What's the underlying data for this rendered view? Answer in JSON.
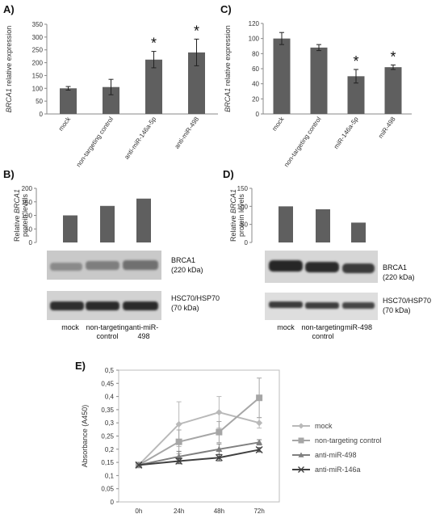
{
  "panels": {
    "A": {
      "letter": "A)"
    },
    "B": {
      "letter": "B)"
    },
    "C": {
      "letter": "C)"
    },
    "D": {
      "letter": "D)"
    },
    "E": {
      "letter": "E)"
    }
  },
  "chart_data": [
    {
      "id": "A",
      "type": "bar",
      "title": "",
      "ylabel": "BRCA1 relative expression",
      "ylabel_italic_part": "BRCA1",
      "categories": [
        "mock",
        "non-targeting control",
        "anti-miR-146a-5p",
        "anti-miR-498"
      ],
      "values": [
        100,
        105,
        212,
        240
      ],
      "errors": [
        7,
        30,
        32,
        52
      ],
      "significant": [
        false,
        false,
        true,
        true
      ],
      "significance_marker": "*",
      "ylim": [
        0,
        350
      ],
      "yticks": [
        0,
        50,
        100,
        150,
        200,
        250,
        300,
        350
      ],
      "bar_color": "#5f5f5f"
    },
    {
      "id": "C",
      "type": "bar",
      "title": "",
      "ylabel": "BRCA1 relative expression",
      "ylabel_italic_part": "BRCA1",
      "categories": [
        "mock",
        "non-targeting control",
        "miR-146a-5p",
        "miR-498"
      ],
      "values": [
        100,
        88,
        50,
        62
      ],
      "errors": [
        8,
        4,
        9,
        3
      ],
      "significant": [
        false,
        false,
        true,
        true
      ],
      "significance_marker": "*",
      "ylim": [
        0,
        120
      ],
      "yticks": [
        0,
        20,
        40,
        60,
        80,
        100,
        120
      ],
      "bar_color": "#5f5f5f"
    },
    {
      "id": "B",
      "type": "bar",
      "ylabel_lines": [
        "Relative BRCA1",
        "protein levels"
      ],
      "categories": [
        "mock",
        "non-targeting control",
        "anti-miR-498"
      ],
      "category_labels": [
        [
          "mock"
        ],
        [
          "non-targeting",
          "control"
        ],
        [
          "anti-miR-",
          "498"
        ]
      ],
      "values": [
        100,
        135,
        162
      ],
      "ylim": [
        0,
        200
      ],
      "yticks": [
        0,
        50,
        100,
        150,
        200
      ],
      "bar_color": "#5f5f5f",
      "blots": [
        {
          "label_lines": [
            "BRCA1",
            "(220 kDa)"
          ]
        },
        {
          "label_lines": [
            "HSC70/HSP70",
            "(70 kDa)"
          ]
        }
      ]
    },
    {
      "id": "D",
      "type": "bar",
      "ylabel_lines": [
        "Relative BRCA1",
        "protein levels"
      ],
      "categories": [
        "mock",
        "non-targeting control",
        "miR-498"
      ],
      "category_labels": [
        [
          "mock"
        ],
        [
          "non-targeting",
          "control"
        ],
        [
          "miR-498"
        ]
      ],
      "values": [
        100,
        92,
        55
      ],
      "ylim": [
        0,
        150
      ],
      "yticks": [
        0,
        50,
        100,
        150
      ],
      "bar_color": "#5f5f5f",
      "blots": [
        {
          "label_lines": [
            "BRCA1",
            "(220 kDa)"
          ]
        },
        {
          "label_lines": [
            "HSC70/HSP70",
            "(70 kDa)"
          ]
        }
      ]
    },
    {
      "id": "E",
      "type": "line",
      "ylabel": "Absorbance (A450)",
      "x": [
        "0h",
        "24h",
        "48h",
        "72h"
      ],
      "ylim": [
        0,
        0.5
      ],
      "yticks": [
        "0",
        "0,05",
        "0,1",
        "0,15",
        "0,2",
        "0,25",
        "0,3",
        "0,35",
        "0,4",
        "0,45",
        "0,5"
      ],
      "series": [
        {
          "name": "mock",
          "values": [
            0.14,
            0.295,
            0.34,
            0.3
          ],
          "errors": [
            0,
            0.085,
            0.06,
            0.02
          ],
          "color": "#b9b9b9",
          "marker": "diamond"
        },
        {
          "name": "non-targeting control",
          "values": [
            0.14,
            0.228,
            0.265,
            0.395
          ],
          "errors": [
            0,
            0.045,
            0.04,
            0.075
          ],
          "color": "#a6a6a6",
          "marker": "square"
        },
        {
          "name": "anti-miR-498",
          "values": [
            0.14,
            0.172,
            0.2,
            0.226
          ],
          "errors": [
            0,
            0.02,
            0.02,
            0.01
          ],
          "color": "#7f7f7f",
          "marker": "triangle"
        },
        {
          "name": "anti-miR-146a",
          "values": [
            0.14,
            0.155,
            0.168,
            0.198
          ],
          "errors": [
            0,
            0.01,
            0.012,
            0.008
          ],
          "color": "#404040",
          "marker": "x"
        }
      ]
    }
  ]
}
